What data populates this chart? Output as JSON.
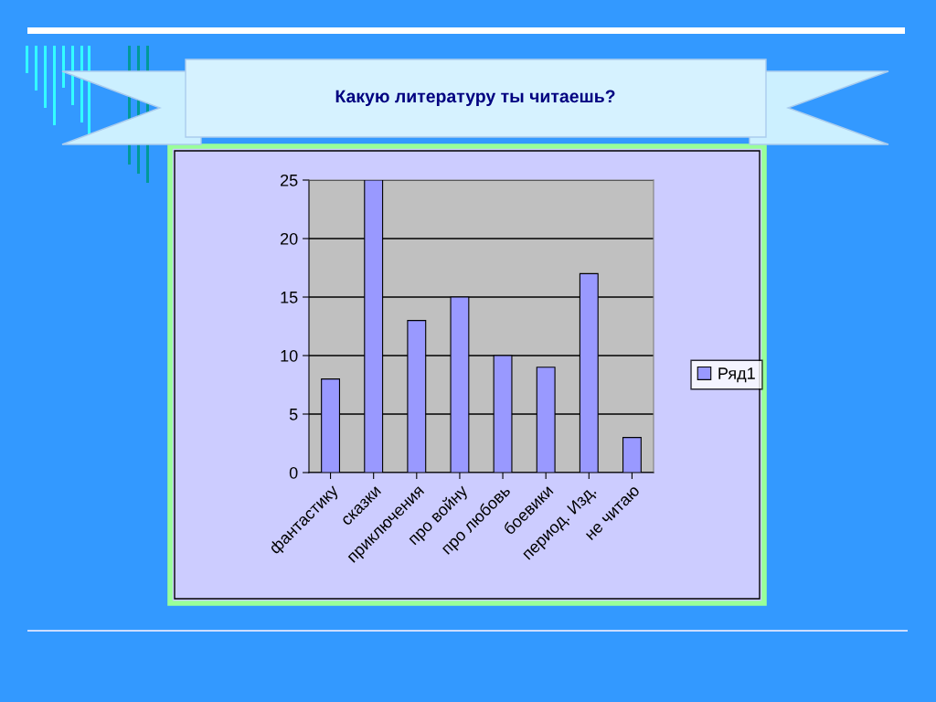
{
  "chart_data": {
    "type": "bar",
    "title": "Какую литературу ты читаешь?",
    "categories": [
      "фантастику",
      "сказки",
      "приключения",
      "про войну",
      "про любовь",
      "боевики",
      "период. Изд.",
      "не читаю"
    ],
    "series": [
      {
        "name": "Ряд1",
        "color": "#9999ff",
        "values": [
          8,
          25,
          13,
          15,
          10,
          9,
          17,
          3
        ]
      }
    ],
    "ylim": [
      0,
      25
    ],
    "yticks": [
      0,
      5,
      10,
      15,
      20,
      25
    ],
    "grid": "y",
    "legend": "right"
  }
}
